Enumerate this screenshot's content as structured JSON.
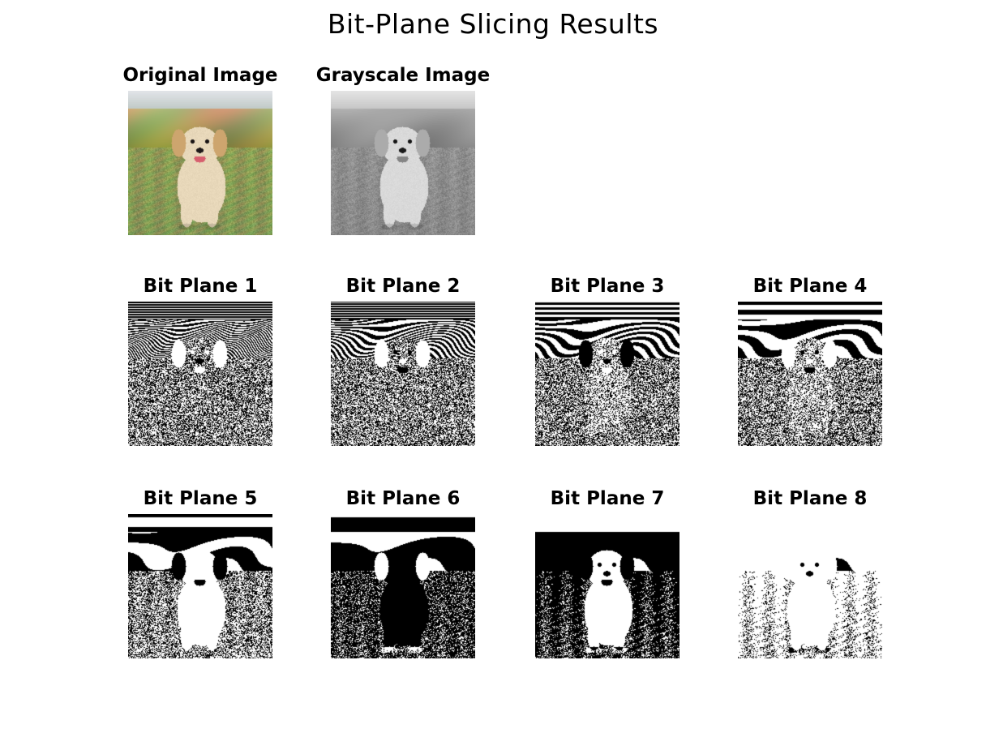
{
  "figure": {
    "title": "Bit-Plane Slicing Results"
  },
  "panels": [
    {
      "title": "Original Image",
      "kind": "color"
    },
    {
      "title": "Grayscale Image",
      "kind": "gray"
    },
    {
      "title": "Bit Plane 1",
      "kind": "bit",
      "bit": 1
    },
    {
      "title": "Bit Plane 2",
      "kind": "bit",
      "bit": 2
    },
    {
      "title": "Bit Plane 3",
      "kind": "bit",
      "bit": 3
    },
    {
      "title": "Bit Plane 4",
      "kind": "bit",
      "bit": 4
    },
    {
      "title": "Bit Plane 5",
      "kind": "bit",
      "bit": 5
    },
    {
      "title": "Bit Plane 6",
      "kind": "bit",
      "bit": 6
    },
    {
      "title": "Bit Plane 7",
      "kind": "bit",
      "bit": 7
    },
    {
      "title": "Bit Plane 8",
      "kind": "bit",
      "bit": 8
    }
  ]
}
